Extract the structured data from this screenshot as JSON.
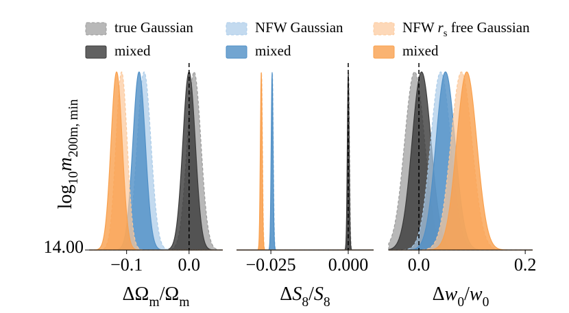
{
  "chart_data": [
    {
      "type": "density",
      "xlabel": [
        {
          "t": "ΔΩ"
        },
        {
          "t": "m",
          "sub": true
        },
        {
          "t": "/Ω"
        },
        {
          "t": "m",
          "sub": true
        }
      ],
      "ylabel": [
        {
          "t": "log"
        },
        {
          "t": "10",
          "sub": true
        },
        {
          "t": "m",
          "italic": true
        },
        {
          "t": "200m, min",
          "sub": true
        }
      ],
      "yticks": [
        {
          "value": 14,
          "label": "14.00"
        }
      ],
      "xlim": [
        -0.16,
        0.054
      ],
      "xticks": [
        {
          "value": -0.1,
          "label": "−0.1"
        },
        {
          "value": 0,
          "label": "0.0"
        }
      ],
      "vline": 0,
      "series": [
        {
          "name": [
            {
              "t": "true Gaussian"
            }
          ],
          "color": "#9a9a9a",
          "dashed": true,
          "mean": 0.008,
          "std": 0.011
        },
        {
          "name": [
            {
              "t": "mixed"
            }
          ],
          "color": "#3a3a3a",
          "dashed": false,
          "mean": 0.0,
          "std": 0.01
        },
        {
          "name": [
            {
              "t": "NFW Gaussian"
            }
          ],
          "color": "#a9cbe8",
          "dashed": true,
          "mean": -0.072,
          "std": 0.011
        },
        {
          "name": [
            {
              "t": "mixed"
            }
          ],
          "color": "#4f8fc6",
          "dashed": false,
          "mean": -0.08,
          "std": 0.01
        },
        {
          "name": [
            {
              "t": "NFW "
            },
            {
              "t": "r",
              "italic": true
            },
            {
              "t": "s",
              "sub": true
            },
            {
              "t": " free Gaussian"
            }
          ],
          "color": "#fcc89a",
          "dashed": true,
          "mean": -0.108,
          "std": 0.009
        },
        {
          "name": [
            {
              "t": "mixed"
            }
          ],
          "color": "#f9a04d",
          "dashed": false,
          "mean": -0.116,
          "std": 0.009
        }
      ]
    },
    {
      "type": "density",
      "xlabel": [
        {
          "t": "Δ"
        },
        {
          "t": "S",
          "italic": true
        },
        {
          "t": "8",
          "sub": true
        },
        {
          "t": "/"
        },
        {
          "t": "S",
          "italic": true
        },
        {
          "t": "8",
          "sub": true
        }
      ],
      "xlim": [
        -0.0361,
        0.0082
      ],
      "xticks": [
        {
          "value": -0.025,
          "label": "−0.025"
        },
        {
          "value": 0,
          "label": "0.000"
        }
      ],
      "vline": 0,
      "series": [
        {
          "color": "#9a9a9a",
          "dashed": true,
          "mean": 0.0001,
          "std": 0.0003
        },
        {
          "color": "#3a3a3a",
          "dashed": false,
          "mean": 0.0,
          "std": 0.0003
        },
        {
          "color": "#a9cbe8",
          "dashed": true,
          "mean": -0.0245,
          "std": 0.0003
        },
        {
          "color": "#4f8fc6",
          "dashed": false,
          "mean": -0.0246,
          "std": 0.0003
        },
        {
          "color": "#fcc89a",
          "dashed": true,
          "mean": -0.028,
          "std": 0.0003
        },
        {
          "color": "#f9a04d",
          "dashed": false,
          "mean": -0.0281,
          "std": 0.0003
        }
      ]
    },
    {
      "type": "density",
      "xlabel": [
        {
          "t": "Δ"
        },
        {
          "t": "w",
          "italic": true
        },
        {
          "t": "0",
          "sub": true
        },
        {
          "t": "/"
        },
        {
          "t": "w",
          "italic": true
        },
        {
          "t": "0",
          "sub": true
        }
      ],
      "xlim": [
        -0.0568,
        0.214
      ],
      "xticks": [
        {
          "value": 0,
          "label": "0.0"
        },
        {
          "value": 0.2,
          "label": "0.2"
        }
      ],
      "vline": 0,
      "series": [
        {
          "color": "#9a9a9a",
          "dashed": true,
          "mean": -0.008,
          "std": 0.019
        },
        {
          "color": "#3a3a3a",
          "dashed": false,
          "mean": 0.005,
          "std": 0.018
        },
        {
          "color": "#a9cbe8",
          "dashed": true,
          "mean": 0.041,
          "std": 0.019
        },
        {
          "color": "#4f8fc6",
          "dashed": false,
          "mean": 0.05,
          "std": 0.018
        },
        {
          "color": "#fcc89a",
          "dashed": true,
          "mean": 0.08,
          "std": 0.02
        },
        {
          "color": "#f9a04d",
          "dashed": false,
          "mean": 0.09,
          "std": 0.019
        }
      ]
    }
  ]
}
